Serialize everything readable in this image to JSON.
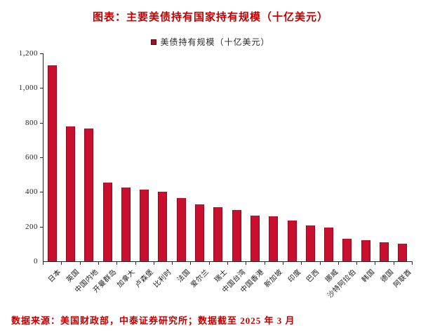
{
  "title": "图表：主要美债持有国家持有规模（十亿美元）",
  "legend": {
    "label": "美债持有规模（十亿美元）",
    "marker_color": "#9E1426"
  },
  "footer": "数据来源：美国财政部，中泰证券研究所；数据截至 2025 年 3 月",
  "colors": {
    "accent_red": "#C00000",
    "bar_fill": "#C8102E",
    "bar_border": "#8F0A20",
    "axis": "#262626"
  },
  "chart_data": {
    "type": "bar",
    "title": "主要美债持有国家持有规模（十亿美元）",
    "categories": [
      "日本",
      "英国",
      "中国内地",
      "开曼群岛",
      "加拿大",
      "卢森堡",
      "比利时",
      "法国",
      "爱尔兰",
      "瑞士",
      "中国台湾",
      "中国香港",
      "新加坡",
      "印度",
      "巴西",
      "挪威",
      "沙特阿拉伯",
      "韩国",
      "德国",
      "阿联酋"
    ],
    "values": [
      1131,
      779,
      765,
      455,
      426,
      412,
      402,
      364,
      329,
      311,
      295,
      264,
      260,
      237,
      208,
      196,
      130,
      122,
      110,
      102
    ],
    "xlabel": "",
    "ylabel": "",
    "ylim": [
      0,
      1200
    ],
    "yticks": [
      0,
      200,
      400,
      600,
      800,
      1000,
      1200
    ],
    "ytick_labels": [
      "0",
      "200",
      "400",
      "600",
      "800",
      "1,000",
      "1,200"
    ],
    "legend_entries": [
      "美债持有规模（十亿美元）"
    ],
    "legend_position": "top-center",
    "grid": false
  }
}
